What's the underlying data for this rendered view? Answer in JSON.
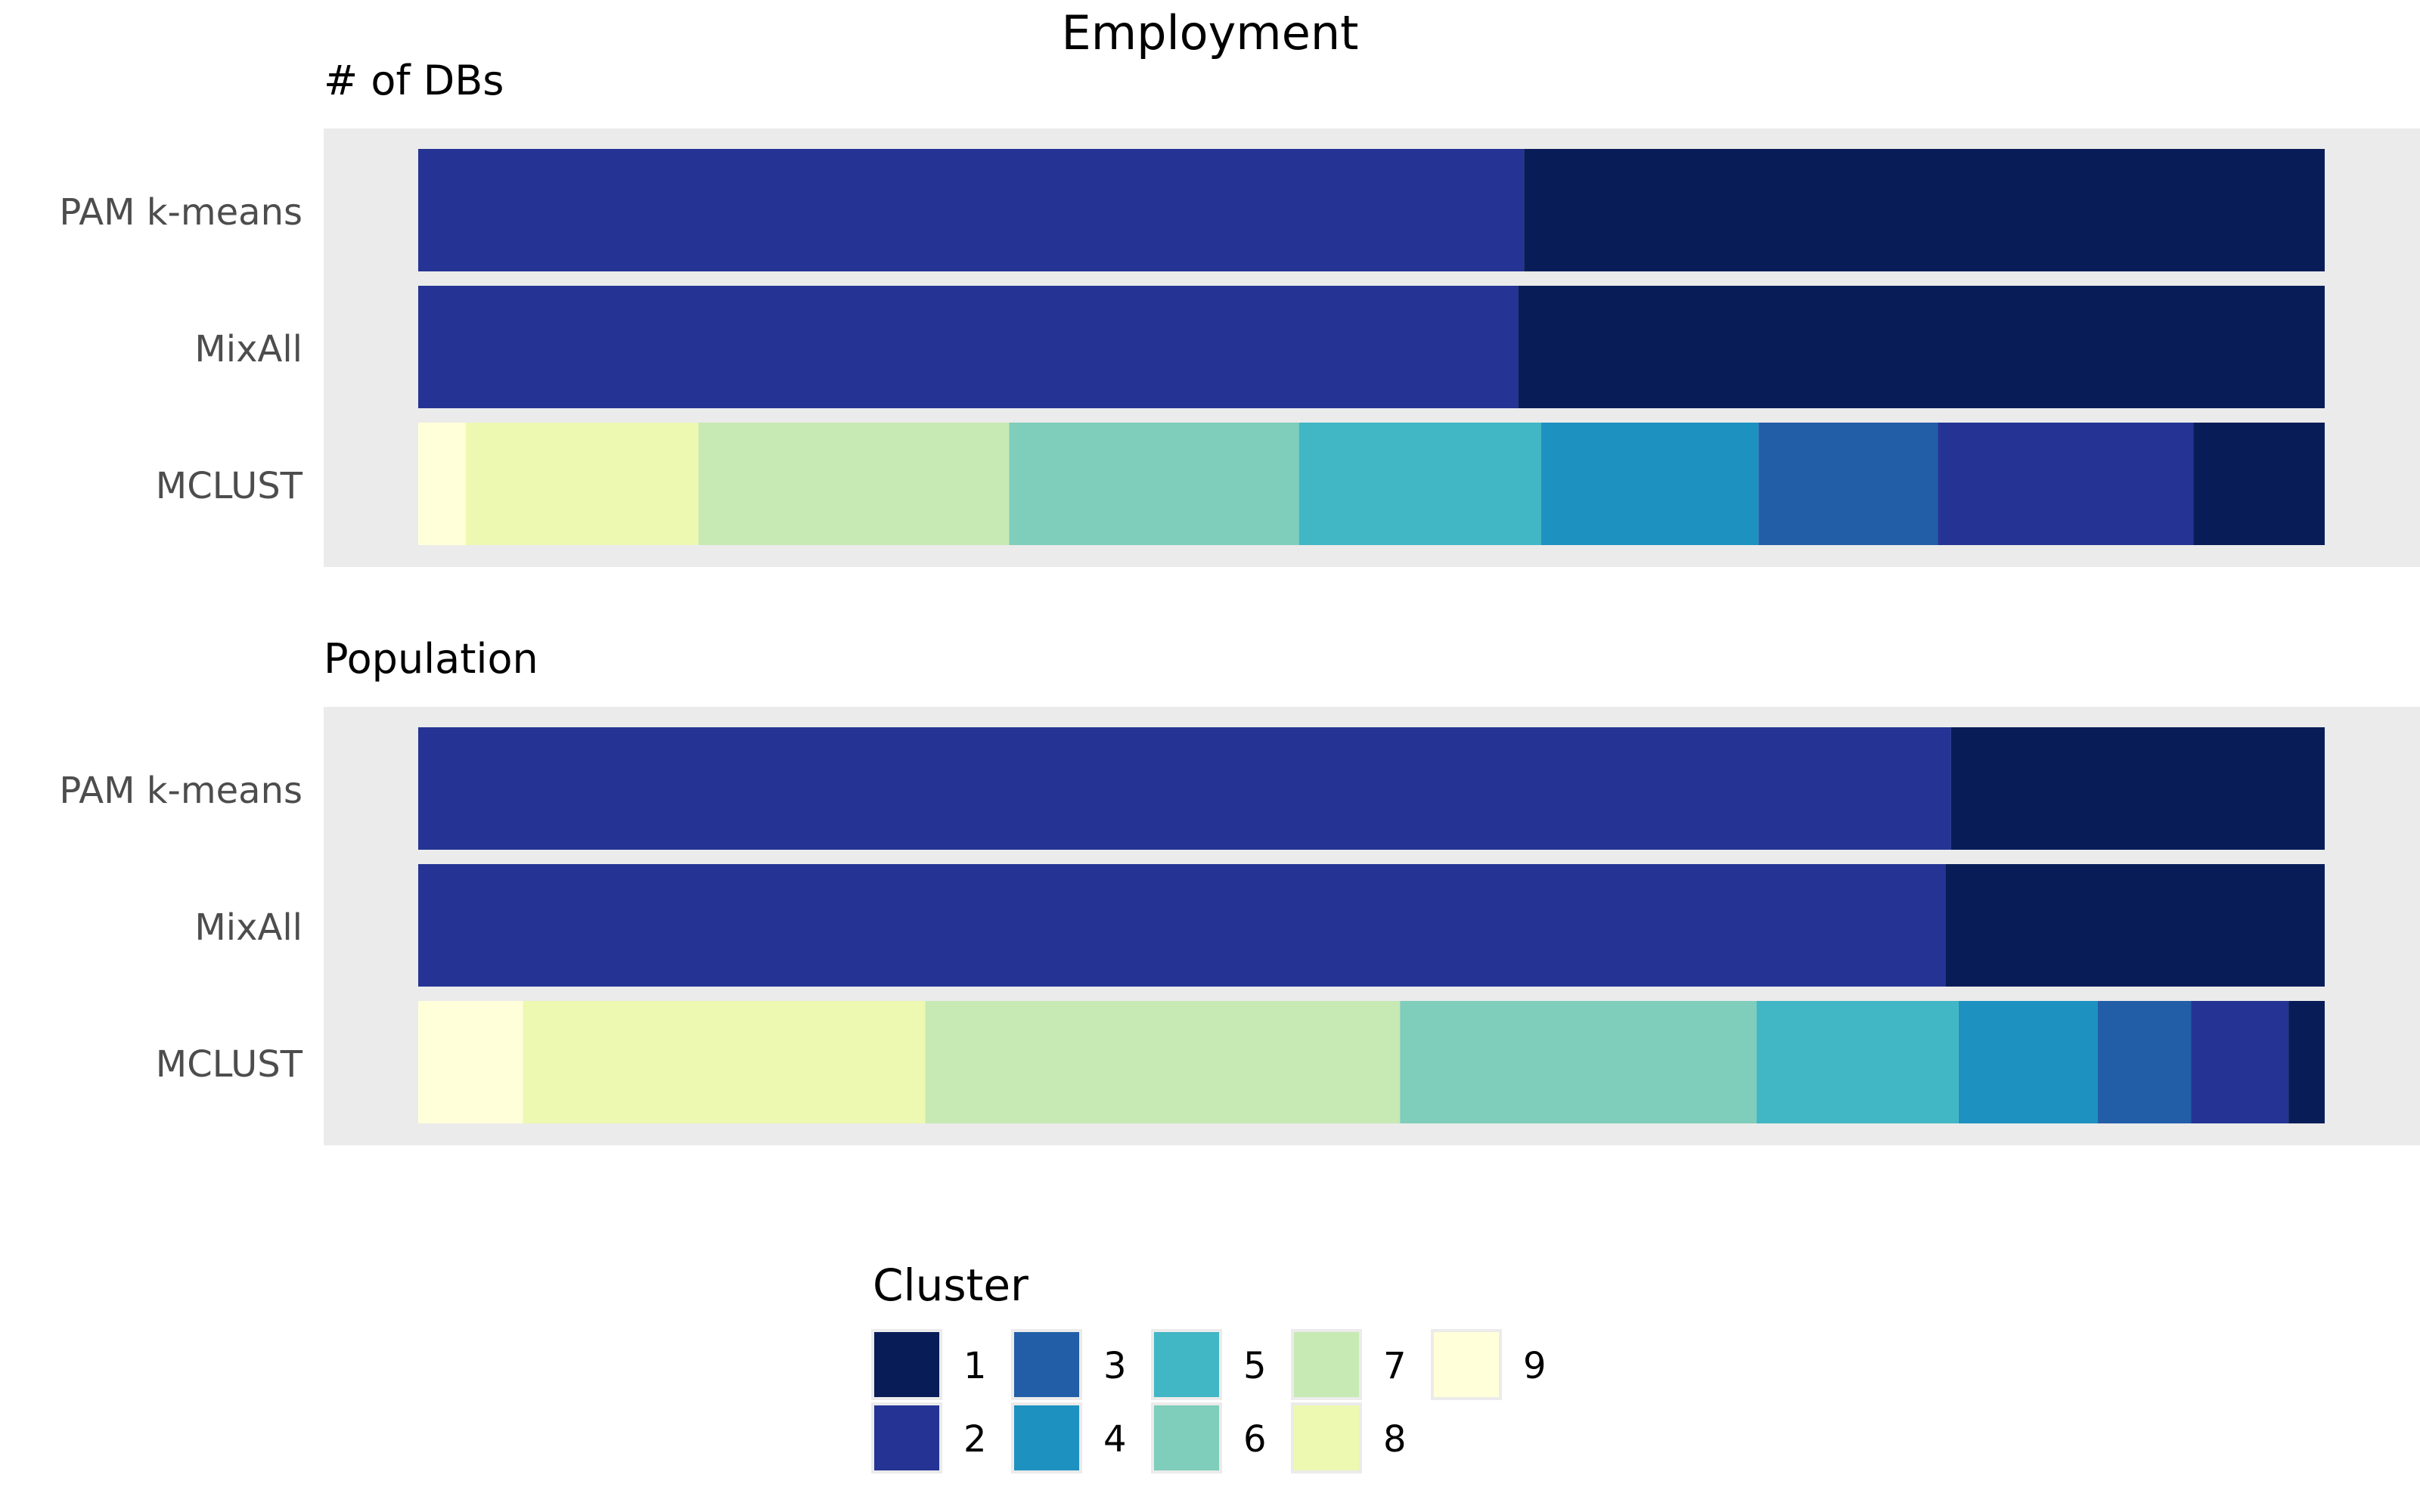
{
  "chart_data": {
    "type": "bar",
    "orientation": "horizontal",
    "stacked": true,
    "normalized": true,
    "title": "Employment",
    "xlabel": "",
    "ylabel": "",
    "grid": false,
    "legend_position": "bottom",
    "legend": {
      "title": "Cluster",
      "entries": [
        {
          "label": "1",
          "color": "#081d58"
        },
        {
          "label": "2",
          "color": "#253494"
        },
        {
          "label": "3",
          "color": "#225ea8"
        },
        {
          "label": "4",
          "color": "#1d91c0"
        },
        {
          "label": "5",
          "color": "#41b6c4"
        },
        {
          "label": "6",
          "color": "#7fcdbb"
        },
        {
          "label": "7",
          "color": "#c7e9b4"
        },
        {
          "label": "8",
          "color": "#edf8b1"
        },
        {
          "label": "9",
          "color": "#ffffd9"
        }
      ]
    },
    "facets": [
      {
        "title": "# of DBs",
        "categories": [
          "PAM k-means",
          "MixAll",
          "MCLUST"
        ],
        "series": [
          {
            "name": "9",
            "values": [
              0,
              0,
              0.025
            ]
          },
          {
            "name": "8",
            "values": [
              0,
              0,
              0.122
            ]
          },
          {
            "name": "7",
            "values": [
              0,
              0,
              0.163
            ]
          },
          {
            "name": "6",
            "values": [
              0,
              0,
              0.152
            ]
          },
          {
            "name": "5",
            "values": [
              0,
              0,
              0.127
            ]
          },
          {
            "name": "4",
            "values": [
              0,
              0,
              0.114
            ]
          },
          {
            "name": "3",
            "values": [
              0,
              0,
              0.094
            ]
          },
          {
            "name": "2",
            "values": [
              0.58,
              0.577,
              0.134
            ]
          },
          {
            "name": "1",
            "values": [
              0.42,
              0.423,
              0.069
            ]
          }
        ]
      },
      {
        "title": "Population",
        "categories": [
          "PAM k-means",
          "MixAll",
          "MCLUST"
        ],
        "series": [
          {
            "name": "9",
            "values": [
              0,
              0,
              0.055
            ]
          },
          {
            "name": "8",
            "values": [
              0,
              0,
              0.211
            ]
          },
          {
            "name": "7",
            "values": [
              0,
              0,
              0.249
            ]
          },
          {
            "name": "6",
            "values": [
              0,
              0,
              0.187
            ]
          },
          {
            "name": "5",
            "values": [
              0,
              0,
              0.106
            ]
          },
          {
            "name": "4",
            "values": [
              0,
              0,
              0.073
            ]
          },
          {
            "name": "3",
            "values": [
              0,
              0,
              0.049
            ]
          },
          {
            "name": "2",
            "values": [
              0.804,
              0.801,
              0.051
            ]
          },
          {
            "name": "1",
            "values": [
              0.196,
              0.199,
              0.019
            ]
          }
        ]
      }
    ]
  }
}
